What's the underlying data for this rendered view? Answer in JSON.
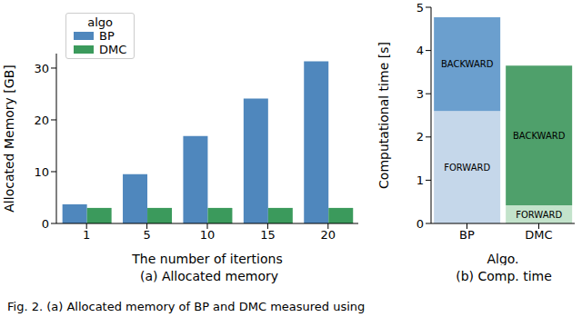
{
  "chart_data": [
    {
      "type": "bar",
      "title": "(a) Allocated memory",
      "x_label": "The number of itertions",
      "y_label": "Allocated Memory [GB]",
      "categories": [
        1,
        5,
        10,
        15,
        20
      ],
      "series": [
        {
          "name": "BP",
          "color": "#4f87bd",
          "values": [
            3.7,
            9.5,
            16.9,
            24.1,
            31.3
          ]
        },
        {
          "name": "DMC",
          "color": "#3b9a5c",
          "values": [
            3.0,
            3.0,
            3.0,
            3.0,
            3.0
          ]
        }
      ],
      "ylim": [
        0,
        32.8
      ],
      "yticks": [
        0,
        10,
        20,
        30
      ],
      "grid": false,
      "legend": "upper left",
      "legend_title": "algo"
    },
    {
      "type": "bar",
      "title": "(b) Comp. time",
      "x_label": "Algo.",
      "y_label": "Computational time [s]",
      "categories": [
        "BP",
        "DMC"
      ],
      "stacked": true,
      "series": [
        {
          "name": "FORWARD",
          "colors": [
            "#c5d7ea",
            "#c3e3cb"
          ],
          "values": [
            2.6,
            0.42
          ]
        },
        {
          "name": "BACKWARD",
          "colors": [
            "#6b9fce",
            "#4fa06b"
          ],
          "values": [
            2.17,
            3.23
          ]
        }
      ],
      "ylim": [
        0,
        5
      ],
      "yticks": [
        0,
        1,
        2,
        3,
        4,
        5
      ],
      "grid": false
    }
  ],
  "caption": "Fig. 2. (a) Allocated memory of BP and DMC measured using"
}
